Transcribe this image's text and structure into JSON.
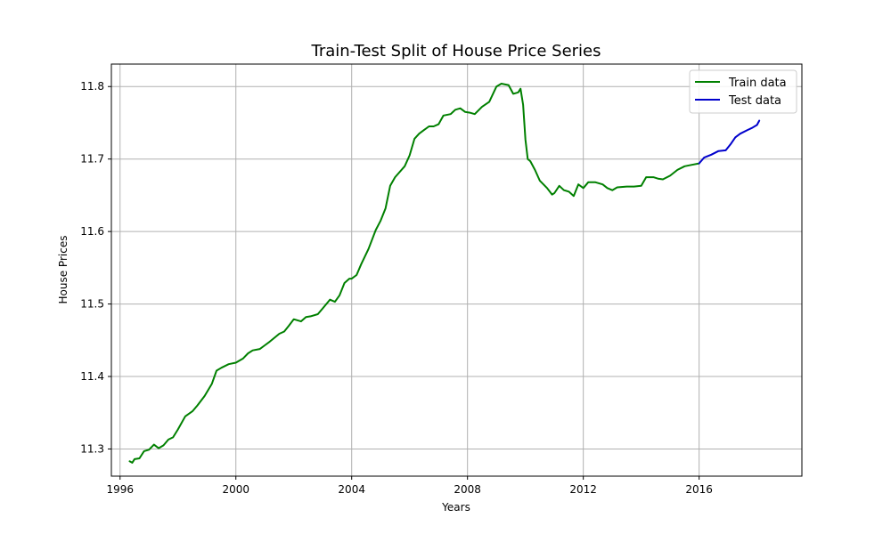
{
  "chart_data": {
    "type": "line",
    "title": "Train-Test Split of House Price Series",
    "xlabel": "Years",
    "ylabel": "House Prices",
    "xlim": [
      1995.7,
      2019.55
    ],
    "ylim": [
      11.2625,
      11.831
    ],
    "x_ticks": [
      1996,
      2000,
      2004,
      2008,
      2012,
      2016
    ],
    "y_ticks": [
      11.3,
      11.4,
      11.5,
      11.6,
      11.7,
      11.8
    ],
    "y_tick_labels": [
      "11.3",
      "11.4",
      "11.5",
      "11.6",
      "11.7",
      "11.8"
    ],
    "grid": true,
    "legend_position": "top-right",
    "series": [
      {
        "name": "Train data",
        "color": "#008000",
        "x": [
          1996.33,
          1996.42,
          1996.5,
          1996.67,
          1996.83,
          1997.0,
          1997.17,
          1997.33,
          1997.5,
          1997.67,
          1997.83,
          1998.0,
          1998.25,
          1998.5,
          1998.67,
          1998.92,
          1999.17,
          1999.33,
          1999.5,
          1999.75,
          2000.0,
          2000.25,
          2000.42,
          2000.58,
          2000.83,
          2001.0,
          2001.17,
          2001.5,
          2001.67,
          2001.83,
          2002.0,
          2002.25,
          2002.42,
          2002.58,
          2002.83,
          2003.0,
          2003.25,
          2003.42,
          2003.58,
          2003.75,
          2003.92,
          2004.0,
          2004.17,
          2004.33,
          2004.58,
          2004.83,
          2005.0,
          2005.17,
          2005.33,
          2005.5,
          2005.83,
          2006.0,
          2006.17,
          2006.33,
          2006.5,
          2006.67,
          2006.83,
          2007.0,
          2007.17,
          2007.42,
          2007.58,
          2007.75,
          2007.92,
          2008.08,
          2008.25,
          2008.5,
          2008.75,
          2009.0,
          2009.17,
          2009.42,
          2009.58,
          2009.75,
          2009.83,
          2009.92,
          2010.0,
          2010.08,
          2010.17,
          2010.33,
          2010.5,
          2010.75,
          2010.92,
          2011.0,
          2011.17,
          2011.33,
          2011.5,
          2011.67,
          2011.83,
          2012.0,
          2012.17,
          2012.42,
          2012.67,
          2012.83,
          2013.0,
          2013.17,
          2013.5,
          2013.75,
          2014.0,
          2014.17,
          2014.42,
          2014.58,
          2014.75,
          2015.0,
          2015.25,
          2015.5,
          2015.75,
          2016.0
        ],
        "y": [
          11.283,
          11.281,
          11.286,
          11.287,
          11.297,
          11.299,
          11.306,
          11.301,
          11.305,
          11.313,
          11.316,
          11.327,
          11.345,
          11.352,
          11.36,
          11.373,
          11.39,
          11.408,
          11.412,
          11.417,
          11.419,
          11.425,
          11.432,
          11.436,
          11.438,
          11.443,
          11.448,
          11.459,
          11.462,
          11.47,
          11.479,
          11.476,
          11.482,
          11.483,
          11.486,
          11.494,
          11.506,
          11.503,
          11.512,
          11.529,
          11.535,
          11.535,
          11.54,
          11.555,
          11.576,
          11.602,
          11.615,
          11.632,
          11.663,
          11.675,
          11.69,
          11.705,
          11.728,
          11.735,
          11.74,
          11.745,
          11.745,
          11.748,
          11.76,
          11.762,
          11.768,
          11.77,
          11.765,
          11.764,
          11.762,
          11.772,
          11.779,
          11.8,
          11.804,
          11.802,
          11.79,
          11.792,
          11.797,
          11.775,
          11.727,
          11.7,
          11.697,
          11.685,
          11.67,
          11.66,
          11.651,
          11.653,
          11.663,
          11.657,
          11.655,
          11.649,
          11.665,
          11.66,
          11.668,
          11.668,
          11.665,
          11.66,
          11.657,
          11.661,
          11.662,
          11.662,
          11.663,
          11.675,
          11.675,
          11.673,
          11.672,
          11.677,
          11.685,
          11.69,
          11.692,
          11.694
        ]
      },
      {
        "name": "Test data",
        "color": "#0000cc",
        "x": [
          2016.0,
          2016.17,
          2016.42,
          2016.67,
          2016.92,
          2017.08,
          2017.25,
          2017.42,
          2017.67,
          2017.83,
          2018.0,
          2018.08
        ],
        "y": [
          11.694,
          11.702,
          11.706,
          11.711,
          11.712,
          11.72,
          11.73,
          11.735,
          11.74,
          11.743,
          11.747,
          11.753
        ]
      }
    ]
  }
}
